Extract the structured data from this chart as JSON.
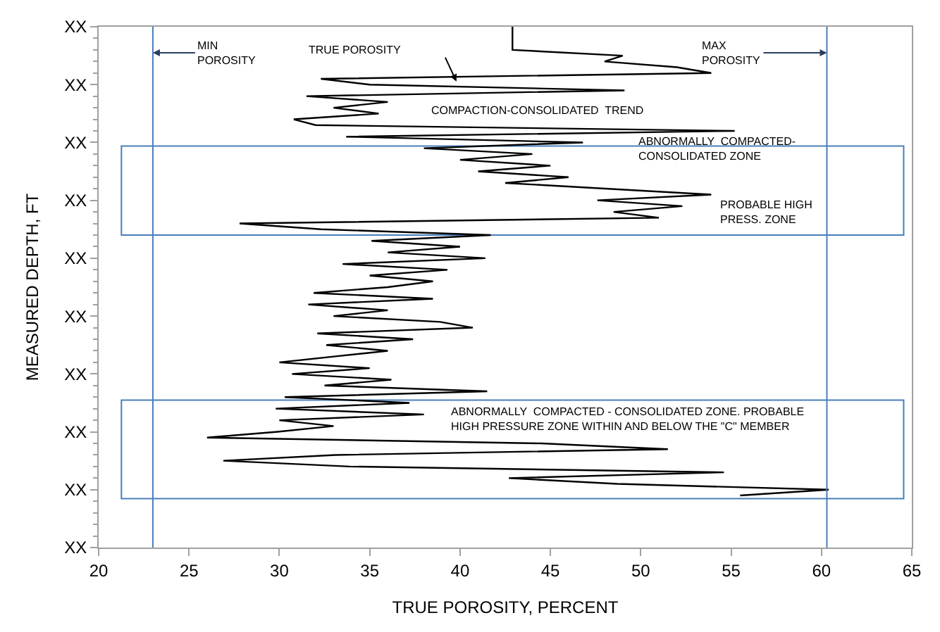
{
  "chart_data": {
    "type": "line",
    "orientation": "horizontal",
    "xlabel": "TRUE POROSITY, PERCENT",
    "ylabel": "MEASURED DEPTH, FT",
    "xlim": [
      20,
      65
    ],
    "xticks": [
      20,
      25,
      30,
      35,
      40,
      45,
      50,
      55,
      60,
      65
    ],
    "categories": [
      "XX",
      null,
      null,
      null,
      null,
      null,
      null,
      null,
      null,
      null,
      "XX",
      null,
      null,
      null,
      null,
      null,
      null,
      null,
      null,
      null,
      "XX",
      null,
      null,
      null,
      null,
      null,
      null,
      null,
      null,
      null,
      "XX",
      null,
      null,
      null,
      null,
      null,
      null,
      null,
      null,
      null,
      "XX",
      null,
      null,
      null,
      null,
      null,
      null,
      null,
      null,
      null,
      "XX",
      null,
      null,
      null,
      null,
      null,
      null,
      null,
      null,
      null,
      "XX",
      null,
      null,
      null,
      null,
      null,
      null,
      null,
      null,
      null,
      "XX",
      null,
      null,
      null,
      null,
      null,
      null,
      null,
      null,
      null,
      "XX",
      null,
      null,
      null,
      null,
      null,
      null,
      null,
      null,
      null,
      "XX"
    ],
    "series": [
      {
        "color": "#000000",
        "values": [
          42.9,
          42.9,
          42.9,
          42.9,
          42.9,
          49,
          48,
          52,
          53.9,
          32.3,
          35,
          49.1,
          31.5,
          36,
          33,
          35.5,
          30.8,
          32,
          55.2,
          33.7,
          46.8,
          38,
          44,
          40,
          45,
          41,
          46,
          42.5,
          48.2,
          53.9,
          47.6,
          52.3,
          48.5,
          51,
          27.8,
          32.3,
          41.7,
          35.1,
          40,
          36,
          41.4,
          33.5,
          39.3,
          35,
          38.5,
          36,
          31.9,
          38.5,
          31.6,
          36,
          33,
          38.9,
          40.7,
          32.1,
          37.4,
          32.6,
          36,
          33,
          30.0,
          35,
          30.7,
          36.2,
          32.5,
          41.5,
          30.3,
          37.2,
          29.8,
          38,
          30,
          33,
          29.9,
          26.0,
          44.5,
          51.5,
          33.1,
          26.9,
          33.9,
          54.6,
          42.7,
          48.7,
          60.4,
          55.5,
          null,
          null,
          null,
          null,
          null,
          null,
          null,
          null,
          null
        ]
      }
    ],
    "ref_lines": [
      {
        "axis": "x",
        "value": 23.0,
        "label": "MIN\nPOROSITY",
        "color": "#4a7ebb"
      },
      {
        "axis": "x",
        "value": 60.3,
        "label": "MAX\nPOROSITY",
        "color": "#4a7ebb"
      }
    ],
    "annotations": [
      "TRUE POROSITY",
      "COMPACTION-CONSOLIDATED  TREND",
      "PROBABLE HIGH\nPRESS. ZONE",
      "ABNORMALLY  COMPACTED-\nCONSOLIDATED ZONE",
      "ABNORMALLY  COMPACTED - CONSOLIDATED ZONE. PROBABLE\nHIGH PRESSURE ZONE WITHIN AND BELOW THE \"C\" MEMBER"
    ],
    "marker": "none",
    "line_style": "solid"
  }
}
